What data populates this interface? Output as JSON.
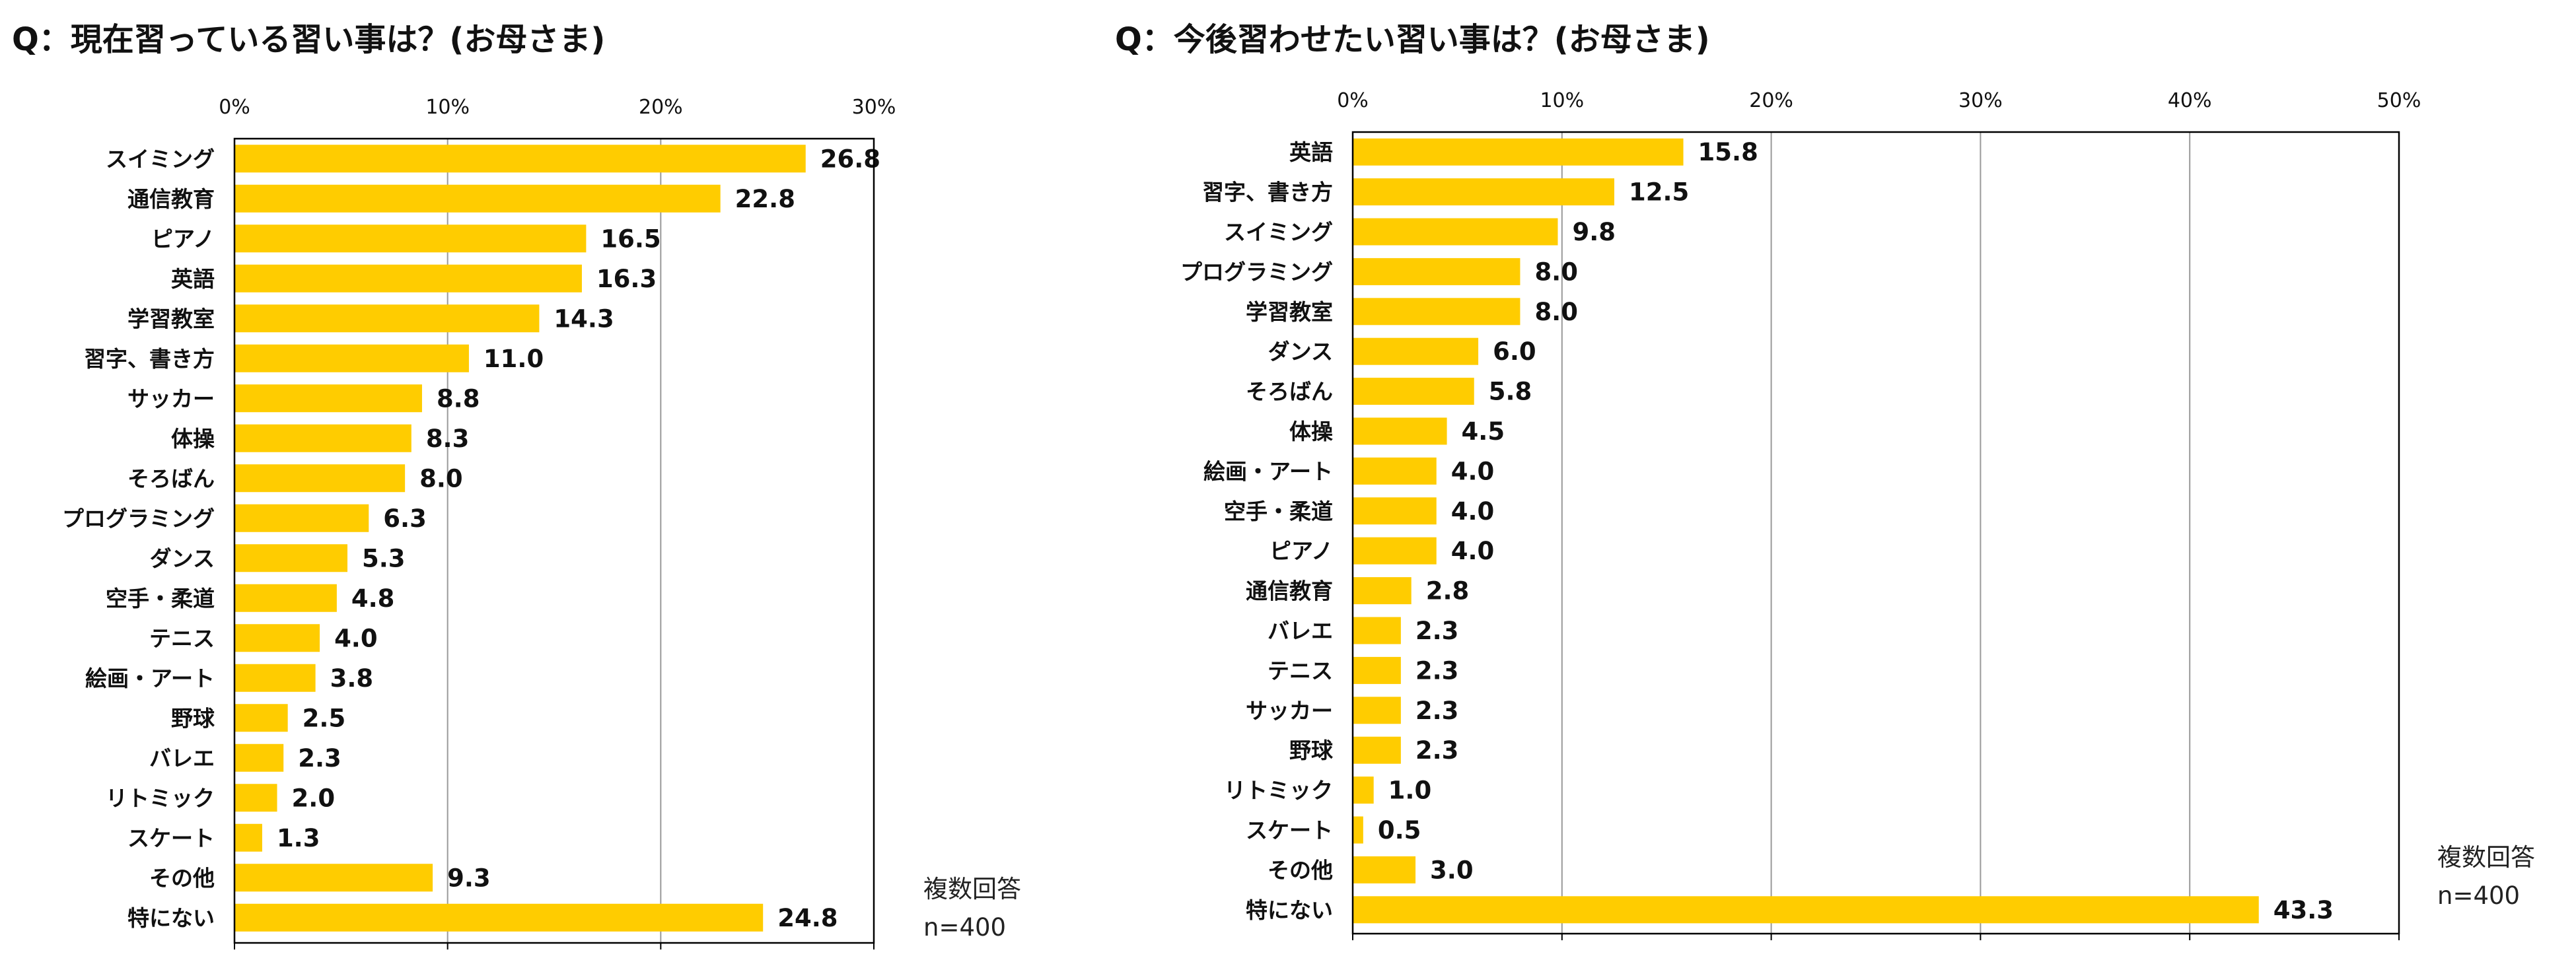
{
  "charts": [
    {
      "title": "Q：現在習っている習い事は？(お母さま)",
      "note_line1": "複数回答",
      "note_line2": "n=400"
    },
    {
      "title": "Q：今後習わせたい習い事は？(お母さま)",
      "note_line1": "複数回答",
      "note_line2": "n=400"
    }
  ],
  "colors": {
    "bar": "#FFCC00",
    "grid": "#999999",
    "axis": "#000000"
  },
  "chart_data": [
    {
      "type": "bar",
      "orientation": "horizontal",
      "title": "Q：現在習っている習い事は？(お母さま)",
      "xlim": [
        0,
        30
      ],
      "tick_values": [
        0,
        10,
        20,
        30
      ],
      "tick_labels": [
        "0%",
        "10%",
        "20%",
        "30%"
      ],
      "grid": true,
      "categories": [
        "スイミング",
        "通信教育",
        "ピアノ",
        "英語",
        "学習教室",
        "習字、書き方",
        "サッカー",
        "体操",
        "そろばん",
        "プログラミング",
        "ダンス",
        "空手・柔道",
        "テニス",
        "絵画・アート",
        "野球",
        "バレエ",
        "リトミック",
        "スケート",
        "その他",
        "特にない"
      ],
      "values": [
        26.8,
        22.8,
        16.5,
        16.3,
        14.3,
        11.0,
        8.8,
        8.3,
        8.0,
        6.3,
        5.3,
        4.8,
        4.0,
        3.8,
        2.5,
        2.3,
        2.0,
        1.3,
        9.3,
        24.8
      ],
      "value_labels": [
        "26.8",
        "22.8",
        "16.5",
        "16.3",
        "14.3",
        "11.0",
        "8.8",
        "8.3",
        "8.0",
        "6.3",
        "5.3",
        "4.8",
        "4.0",
        "3.8",
        "2.5",
        "2.3",
        "2.0",
        "1.3",
        "9.3",
        "24.8"
      ]
    },
    {
      "type": "bar",
      "orientation": "horizontal",
      "title": "Q：今後習わせたい習い事は？(お母さま)",
      "xlim": [
        0,
        50
      ],
      "tick_values": [
        0,
        10,
        20,
        30,
        40,
        50
      ],
      "tick_labels": [
        "0%",
        "10%",
        "20%",
        "30%",
        "40%",
        "50%"
      ],
      "grid": true,
      "categories": [
        "英語",
        "習字、書き方",
        "スイミング",
        "プログラミング",
        "学習教室",
        "ダンス",
        "そろばん",
        "体操",
        "絵画・アート",
        "空手・柔道",
        "ピアノ",
        "通信教育",
        "バレエ",
        "テニス",
        "サッカー",
        "野球",
        "リトミック",
        "スケート",
        "その他",
        "特にない"
      ],
      "values": [
        15.8,
        12.5,
        9.8,
        8.0,
        8.0,
        6.0,
        5.8,
        4.5,
        4.0,
        4.0,
        4.0,
        2.8,
        2.3,
        2.3,
        2.3,
        2.3,
        1.0,
        0.5,
        3.0,
        43.3
      ],
      "value_labels": [
        "15.8",
        "12.5",
        "9.8",
        "8.0",
        "8.0",
        "6.0",
        "5.8",
        "4.5",
        "4.0",
        "4.0",
        "4.0",
        "2.8",
        "2.3",
        "2.3",
        "2.3",
        "2.3",
        "1.0",
        "0.5",
        "3.0",
        "43.3"
      ]
    }
  ]
}
